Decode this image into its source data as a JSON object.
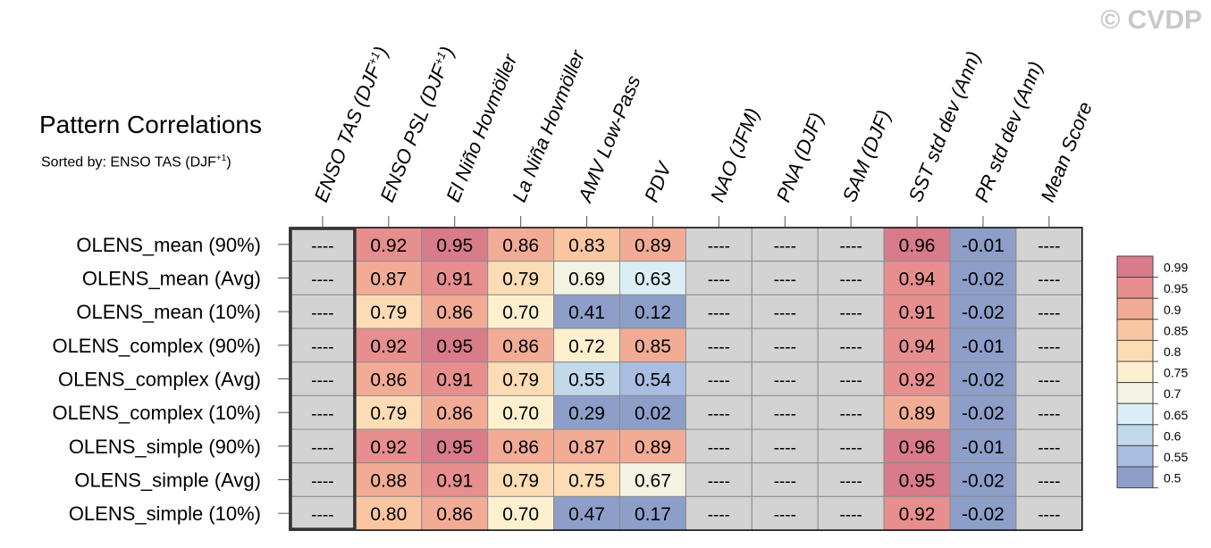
{
  "watermark": "© CVDP",
  "title": "Pattern Correlations",
  "subtitle": {
    "prefix": "Sorted by: ENSO TAS (DJF",
    "sup": "+1",
    "suffix": ")"
  },
  "colors": {
    "missing": "#d3d3d3",
    "grid": "#8c8c8c",
    "border": "#000000",
    "scale": [
      "#8d9ec9",
      "#a9bde0",
      "#c2d9ec",
      "#dceef5",
      "#f3f3e4",
      "#fdf0cf",
      "#fcdcb4",
      "#f9c6a1",
      "#f2ac95",
      "#e68f8e",
      "#d87b8a"
    ]
  },
  "chart_data": {
    "type": "heatmap",
    "title": "Pattern Correlations",
    "subtitle": "Sorted by: ENSO TAS (DJF+1)",
    "columns": [
      {
        "label": "ENSO TAS (DJF",
        "sup": "+1",
        "tail": ")"
      },
      {
        "label": "ENSO PSL (DJF",
        "sup": "+1",
        "tail": ")"
      },
      {
        "label": "El Niño Hovmöller",
        "sup": "",
        "tail": ""
      },
      {
        "label": "La Niña Hovmöller",
        "sup": "",
        "tail": ""
      },
      {
        "label": "AMV Low-Pass",
        "sup": "",
        "tail": ""
      },
      {
        "label": "PDV",
        "sup": "",
        "tail": ""
      },
      {
        "label": "NAO (JFM)",
        "sup": "",
        "tail": ""
      },
      {
        "label": "PNA (DJF)",
        "sup": "",
        "tail": ""
      },
      {
        "label": "SAM (DJF)",
        "sup": "",
        "tail": ""
      },
      {
        "label": "SST std dev (Ann)",
        "sup": "",
        "tail": ""
      },
      {
        "label": "PR std dev (Ann)",
        "sup": "",
        "tail": ""
      },
      {
        "label": "Mean Score",
        "sup": "",
        "tail": ""
      }
    ],
    "rows": [
      "OLENS_mean (90%)",
      "OLENS_mean (Avg)",
      "OLENS_mean (10%)",
      "OLENS_complex (90%)",
      "OLENS_complex (Avg)",
      "OLENS_complex (10%)",
      "OLENS_simple (90%)",
      "OLENS_simple (Avg)",
      "OLENS_simple (10%)"
    ],
    "missing_label": "----",
    "values": [
      [
        null,
        0.92,
        0.95,
        0.86,
        0.83,
        0.89,
        null,
        null,
        null,
        0.96,
        -0.01,
        null
      ],
      [
        null,
        0.87,
        0.91,
        0.79,
        0.69,
        0.63,
        null,
        null,
        null,
        0.94,
        -0.02,
        null
      ],
      [
        null,
        0.79,
        0.86,
        0.7,
        0.41,
        0.12,
        null,
        null,
        null,
        0.91,
        -0.02,
        null
      ],
      [
        null,
        0.92,
        0.95,
        0.86,
        0.72,
        0.85,
        null,
        null,
        null,
        0.94,
        -0.01,
        null
      ],
      [
        null,
        0.86,
        0.91,
        0.79,
        0.55,
        0.54,
        null,
        null,
        null,
        0.92,
        -0.02,
        null
      ],
      [
        null,
        0.79,
        0.86,
        0.7,
        0.29,
        0.02,
        null,
        null,
        null,
        0.89,
        -0.02,
        null
      ],
      [
        null,
        0.92,
        0.95,
        0.86,
        0.87,
        0.89,
        null,
        null,
        null,
        0.96,
        -0.01,
        null
      ],
      [
        null,
        0.88,
        0.91,
        0.79,
        0.75,
        0.67,
        null,
        null,
        null,
        0.95,
        -0.02,
        null
      ],
      [
        null,
        0.8,
        0.86,
        0.7,
        0.47,
        0.17,
        null,
        null,
        null,
        0.92,
        -0.02,
        null
      ]
    ],
    "highlighted_column": "ENSO TAS (DJF+1)",
    "colorbar": {
      "levels": [
        0.99,
        0.95,
        0.9,
        0.85,
        0.8,
        0.75,
        0.7,
        0.65,
        0.6,
        0.55,
        0.5
      ],
      "labels": [
        "0.99",
        "0.95",
        "0.9",
        "0.85",
        "0.8",
        "0.75",
        "0.7",
        "0.65",
        "0.6",
        "0.55",
        "0.5"
      ]
    }
  }
}
